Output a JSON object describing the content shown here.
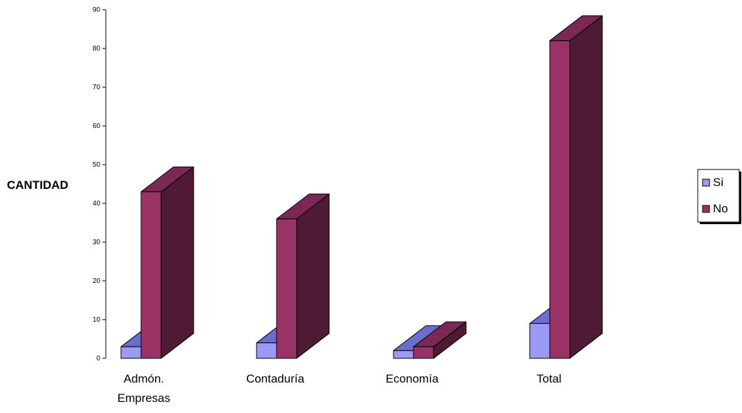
{
  "colors": {
    "si_front": "#9a9af5",
    "si_top": "#6c6cd0",
    "si_side": "#4a4aa4",
    "no_front": "#993366",
    "no_top": "#7a2854",
    "no_side": "#4e1a34",
    "axis": "#000000"
  },
  "chart_data": {
    "type": "bar",
    "three_d": true,
    "categories": [
      "Admón.\nEmpresas",
      "Contaduría",
      "Economía",
      "Total"
    ],
    "series": [
      {
        "name": "Si",
        "values": [
          3,
          4,
          2,
          9
        ],
        "color": "#9a9af5"
      },
      {
        "name": "No",
        "values": [
          43,
          36,
          3,
          82
        ],
        "color": "#993366"
      }
    ],
    "ylabel": "CANTIDAD",
    "xlabel": "",
    "ylim": [
      0,
      90
    ],
    "yticks": [
      0,
      10,
      20,
      30,
      40,
      50,
      60,
      70,
      80,
      90
    ],
    "grid": false,
    "legend_position": "right"
  }
}
